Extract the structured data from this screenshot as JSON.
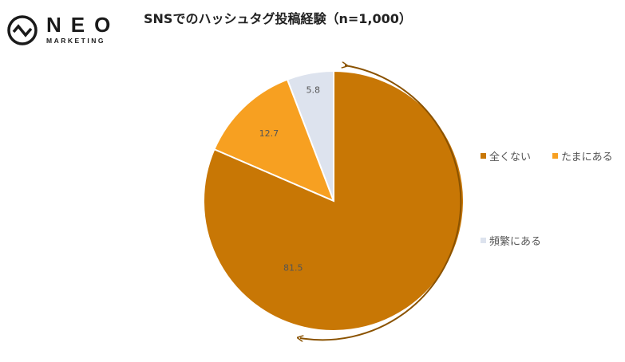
{
  "logo": {
    "name": "NEO",
    "sub": "MARKETING"
  },
  "chart_data": {
    "type": "pie",
    "title": "SNSでのハッシュタグ投稿経験（n=1,000）",
    "categories": [
      "全くない",
      "たまにある",
      "頻繁にある"
    ],
    "values": [
      81.5,
      12.7,
      5.8
    ],
    "colors": [
      "#C87705",
      "#F7A021",
      "#DDE3EE"
    ],
    "legend_position": "right"
  }
}
